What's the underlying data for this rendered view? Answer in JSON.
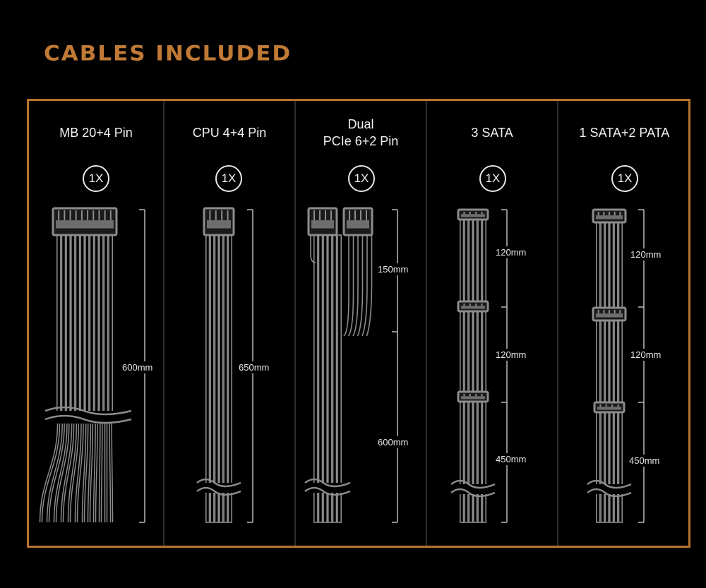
{
  "title": "CABLES INCLUDED",
  "colors": {
    "accent": "#c07a35",
    "frame": "#b8742f",
    "cable": "#8c8c8c",
    "text": "#f2f2f2"
  },
  "cables": [
    {
      "name": "MB 20+4 Pin",
      "qty": "1X",
      "lengths": [
        "600mm"
      ]
    },
    {
      "name": "CPU 4+4 Pin",
      "qty": "1X",
      "lengths": [
        "650mm"
      ]
    },
    {
      "name_line1": "Dual",
      "name_line2": "PCIe 6+2 Pin",
      "qty": "1X",
      "lengths": [
        "150mm",
        "600mm"
      ]
    },
    {
      "name": "3 SATA",
      "qty": "1X",
      "lengths": [
        "120mm",
        "120mm",
        "450mm"
      ]
    },
    {
      "name": "1 SATA+2 PATA",
      "qty": "1X",
      "lengths": [
        "120mm",
        "120mm",
        "450mm"
      ]
    }
  ]
}
